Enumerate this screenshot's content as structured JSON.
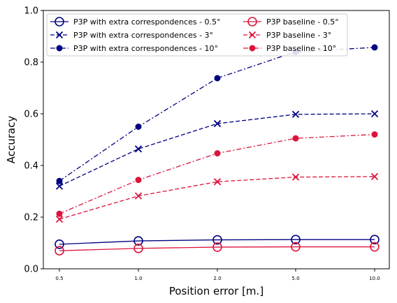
{
  "chart_data": {
    "type": "line",
    "title": "",
    "xlabel": "Position error [m.]",
    "ylabel": "Accuracy",
    "categories": [
      "0.5",
      "1.0",
      "2.0",
      "5.0",
      "10.0"
    ],
    "ylim": [
      0.0,
      1.0
    ],
    "yticks": [
      "0.0",
      "0.2",
      "0.4",
      "0.6",
      "0.8",
      "1.0"
    ],
    "grid": false,
    "legend_position": "top-left",
    "legend_columns": 2,
    "series": [
      {
        "name": "P3P with extra correspondences - 0.5°",
        "values": [
          0.095,
          0.108,
          0.112,
          0.113,
          0.113
        ],
        "color": "#000080",
        "dash": "solid",
        "marker": "circle-open"
      },
      {
        "name": "P3P with extra correspondences - 3°",
        "values": [
          0.32,
          0.464,
          0.562,
          0.598,
          0.6
        ],
        "color": "#000080",
        "dash": "dashed",
        "marker": "x"
      },
      {
        "name": "P3P with extra correspondences - 10°",
        "values": [
          0.34,
          0.55,
          0.738,
          0.84,
          0.857
        ],
        "color": "#000080",
        "dash": "dashdot",
        "marker": "dot"
      },
      {
        "name": "P3P baseline - 0.5°",
        "values": [
          0.07,
          0.079,
          0.084,
          0.085,
          0.085
        ],
        "color": "#DC143C",
        "dash": "solid",
        "marker": "circle-open"
      },
      {
        "name": "P3P baseline - 3°",
        "values": [
          0.192,
          0.282,
          0.337,
          0.355,
          0.357
        ],
        "color": "#DC143C",
        "dash": "dashed",
        "marker": "x"
      },
      {
        "name": "P3P baseline - 10°",
        "values": [
          0.213,
          0.344,
          0.447,
          0.505,
          0.52
        ],
        "color": "#DC143C",
        "dash": "dashdot",
        "marker": "dot"
      }
    ]
  }
}
